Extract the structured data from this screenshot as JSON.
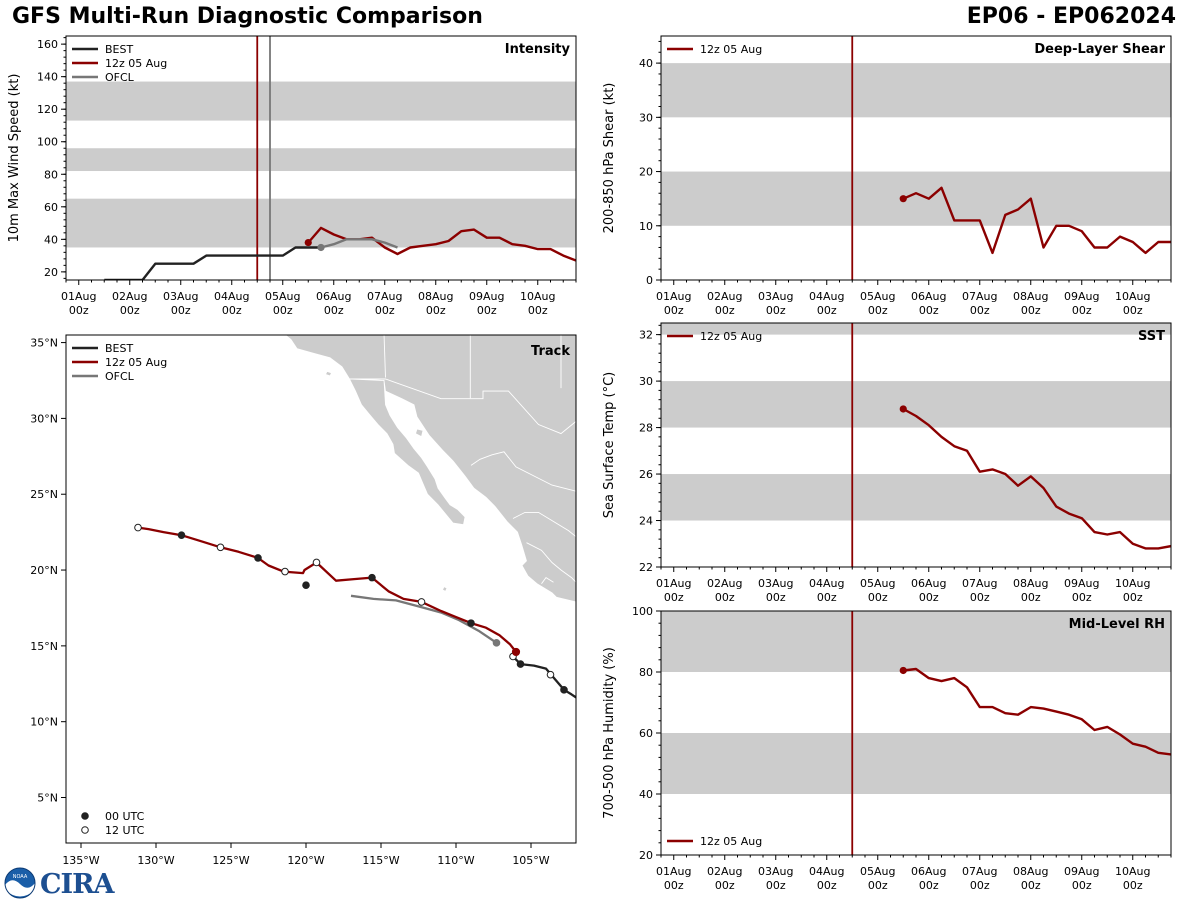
{
  "header": {
    "title": "GFS Multi-Run Diagnostic Comparison",
    "storm_id": "EP06 - EP062024"
  },
  "colors": {
    "best": "#222222",
    "run": "#8B0000",
    "ofcl": "#777777",
    "band": "#cccccc",
    "land": "#cccccc"
  },
  "legend": {
    "best": "BEST",
    "run": "12z 05 Aug",
    "ofcl": "OFCL",
    "utc00": "00 UTC",
    "utc12": "12 UTC"
  },
  "logos": {
    "noaa": "NOAA",
    "cira": "CIRA"
  },
  "time_axis": {
    "labels": [
      "01Aug",
      "02Aug",
      "03Aug",
      "04Aug",
      "05Aug",
      "06Aug",
      "07Aug",
      "08Aug",
      "09Aug",
      "10Aug"
    ],
    "sublabel": "00z",
    "day_range": [
      0.75,
      10.75
    ],
    "init_day": 4.5,
    "ofcl_day": 4.75
  },
  "chart_data": [
    {
      "id": "intensity",
      "type": "line",
      "title": "Intensity",
      "ylabel": "10m Max Wind Speed (kt)",
      "ylim": [
        15,
        165
      ],
      "yticks": [
        20,
        40,
        60,
        80,
        100,
        120,
        140,
        160
      ],
      "bands": [
        [
          35,
          65
        ],
        [
          82,
          96
        ],
        [
          113,
          137
        ]
      ],
      "series": [
        {
          "name": "BEST",
          "x": [
            1.5,
            2.0,
            2.25,
            2.5,
            3.0,
            3.25,
            3.5,
            4.0,
            4.5,
            5.0,
            5.25,
            5.5,
            5.75
          ],
          "values": [
            15,
            15,
            15,
            25,
            25,
            25,
            30,
            30,
            30,
            30,
            35,
            35,
            35
          ]
        },
        {
          "name": "12z 05 Aug",
          "x": [
            5.5,
            5.75,
            6.0,
            6.25,
            6.5,
            6.75,
            7.0,
            7.25,
            7.5,
            7.75,
            8.0,
            8.25,
            8.5,
            8.75,
            9.0,
            9.25,
            9.5,
            9.75,
            10.0,
            10.25,
            10.5,
            10.75
          ],
          "values": [
            38,
            47,
            43,
            40,
            40,
            41,
            35,
            31,
            35,
            36,
            37,
            39,
            45,
            46,
            41,
            41,
            37,
            36,
            34,
            34,
            30,
            27
          ]
        },
        {
          "name": "OFCL",
          "x": [
            5.75,
            6.0,
            6.25,
            6.5,
            6.75,
            7.0,
            7.25
          ],
          "values": [
            35,
            37,
            40,
            40,
            40,
            38,
            35
          ]
        }
      ]
    },
    {
      "id": "shear",
      "type": "line",
      "title": "Deep-Layer Shear",
      "ylabel": "200-850 hPa Shear (kt)",
      "ylim": [
        0,
        45
      ],
      "yticks": [
        0,
        10,
        20,
        30,
        40
      ],
      "bands": [
        [
          10,
          20
        ],
        [
          30,
          40
        ]
      ],
      "series": [
        {
          "name": "12z 05 Aug",
          "x": [
            5.5,
            5.75,
            6.0,
            6.25,
            6.5,
            6.75,
            7.0,
            7.25,
            7.5,
            7.75,
            8.0,
            8.25,
            8.5,
            8.75,
            9.0,
            9.25,
            9.5,
            9.75,
            10.0,
            10.25,
            10.5,
            10.75
          ],
          "values": [
            15,
            16,
            15,
            17,
            11,
            11,
            11,
            5,
            12,
            13,
            15,
            6,
            10,
            10,
            9,
            6,
            6,
            8,
            7,
            5,
            7,
            7
          ]
        }
      ]
    },
    {
      "id": "sst",
      "type": "line",
      "title": "SST",
      "ylabel": "Sea Surface Temp (°C)",
      "ylim": [
        22,
        32.5
      ],
      "yticks": [
        22,
        24,
        26,
        28,
        30,
        32
      ],
      "bands": [
        [
          24,
          26
        ],
        [
          28,
          30
        ],
        [
          32,
          32.5
        ]
      ],
      "series": [
        {
          "name": "12z 05 Aug",
          "x": [
            5.5,
            5.75,
            6.0,
            6.25,
            6.5,
            6.75,
            7.0,
            7.25,
            7.5,
            7.75,
            8.0,
            8.25,
            8.5,
            8.75,
            9.0,
            9.25,
            9.5,
            9.75,
            10.0,
            10.25,
            10.5,
            10.75
          ],
          "values": [
            28.8,
            28.5,
            28.1,
            27.6,
            27.2,
            27.0,
            26.1,
            26.2,
            26.0,
            25.5,
            25.9,
            25.4,
            24.6,
            24.3,
            24.1,
            23.5,
            23.4,
            23.5,
            23.0,
            22.8,
            22.8,
            22.9
          ]
        }
      ]
    },
    {
      "id": "rh",
      "type": "line",
      "title": "Mid-Level RH",
      "ylabel": "700-500 hPa Humidity (%)",
      "ylim": [
        20,
        100
      ],
      "yticks": [
        20,
        40,
        60,
        80,
        100
      ],
      "bands": [
        [
          40,
          60
        ],
        [
          80,
          100
        ]
      ],
      "series": [
        {
          "name": "12z 05 Aug",
          "x": [
            5.5,
            5.75,
            6.0,
            6.25,
            6.5,
            6.75,
            7.0,
            7.25,
            7.5,
            7.75,
            8.0,
            8.25,
            8.5,
            8.75,
            9.0,
            9.25,
            9.5,
            9.75,
            10.0,
            10.25,
            10.5,
            10.75
          ],
          "values": [
            80.5,
            81,
            78,
            77,
            78,
            75,
            68.5,
            68.5,
            66.5,
            66,
            68.5,
            68,
            67,
            66,
            64.5,
            61,
            62,
            59.5,
            56.5,
            55.5,
            53.5,
            53
          ]
        }
      ]
    },
    {
      "id": "track",
      "type": "scatter",
      "title": "Track",
      "xlim": [
        -136,
        -102
      ],
      "ylim": [
        2,
        35.5
      ],
      "xticks": [
        -135,
        -130,
        -125,
        -120,
        -115,
        -110,
        -105
      ],
      "xtick_labels": [
        "135°W",
        "130°W",
        "125°W",
        "120°W",
        "115°W",
        "110°W",
        "105°W"
      ],
      "yticks": [
        5,
        10,
        15,
        20,
        25,
        30,
        35
      ],
      "ytick_labels": [
        "5°N",
        "10°N",
        "15°N",
        "20°N",
        "25°N",
        "30°N",
        "35°N"
      ],
      "series": [
        {
          "name": "BEST",
          "lon": [
            -102.0,
            -102.3,
            -102.8,
            -103.4,
            -104.0,
            -104.8,
            -105.7,
            -106.3
          ],
          "lat": [
            11.6,
            11.8,
            12.1,
            12.8,
            13.5,
            13.7,
            13.8,
            14.4
          ],
          "markers": [
            {
              "lon": -102.8,
              "lat": 12.1,
              "utc": "00"
            },
            {
              "lon": -103.7,
              "lat": 13.1,
              "utc": "12"
            },
            {
              "lon": -105.7,
              "lat": 13.8,
              "utc": "00"
            },
            {
              "lon": -106.2,
              "lat": 14.3,
              "utc": "12"
            }
          ]
        },
        {
          "name": "12z 05 Aug",
          "lon": [
            -106.0,
            -106.4,
            -107.1,
            -108.0,
            -109.0,
            -110.0,
            -111.0,
            -112.3,
            -113.5,
            -114.5,
            -115.6,
            -116.8,
            -118.0,
            -119.3,
            -120.1,
            -120.2,
            -121.5,
            -122.5,
            -123.2,
            -124.5,
            -125.7,
            -127.0,
            -128.3,
            -129.5,
            -130.5,
            -131.2
          ],
          "lat": [
            14.6,
            15.1,
            15.7,
            16.2,
            16.5,
            16.9,
            17.3,
            17.9,
            18.1,
            18.6,
            19.5,
            19.4,
            19.3,
            20.5,
            20.0,
            19.8,
            19.9,
            20.3,
            20.8,
            21.2,
            21.5,
            21.9,
            22.3,
            22.5,
            22.7,
            22.8
          ],
          "markers": [
            {
              "lon": -106.0,
              "lat": 14.6,
              "utc": "init"
            },
            {
              "lon": -109.0,
              "lat": 16.5,
              "utc": "00"
            },
            {
              "lon": -112.3,
              "lat": 17.9,
              "utc": "12"
            },
            {
              "lon": -115.6,
              "lat": 19.5,
              "utc": "00"
            },
            {
              "lon": -119.3,
              "lat": 20.5,
              "utc": "12"
            },
            {
              "lon": -120.0,
              "lat": 19.0,
              "utc": "00"
            },
            {
              "lon": -121.4,
              "lat": 19.9,
              "utc": "12"
            },
            {
              "lon": -123.2,
              "lat": 20.8,
              "utc": "00"
            },
            {
              "lon": -125.7,
              "lat": 21.5,
              "utc": "12"
            },
            {
              "lon": -128.3,
              "lat": 22.3,
              "utc": "00"
            },
            {
              "lon": -131.2,
              "lat": 22.8,
              "utc": "12"
            }
          ]
        },
        {
          "name": "OFCL",
          "lon": [
            -107.3,
            -108.5,
            -109.8,
            -111.0,
            -112.5,
            -114.0,
            -115.5,
            -117.0
          ],
          "lat": [
            15.2,
            16.0,
            16.7,
            17.2,
            17.6,
            18.0,
            18.1,
            18.3
          ],
          "markers": [
            {
              "lon": -107.3,
              "lat": 15.2,
              "utc": "00"
            }
          ]
        }
      ]
    }
  ]
}
